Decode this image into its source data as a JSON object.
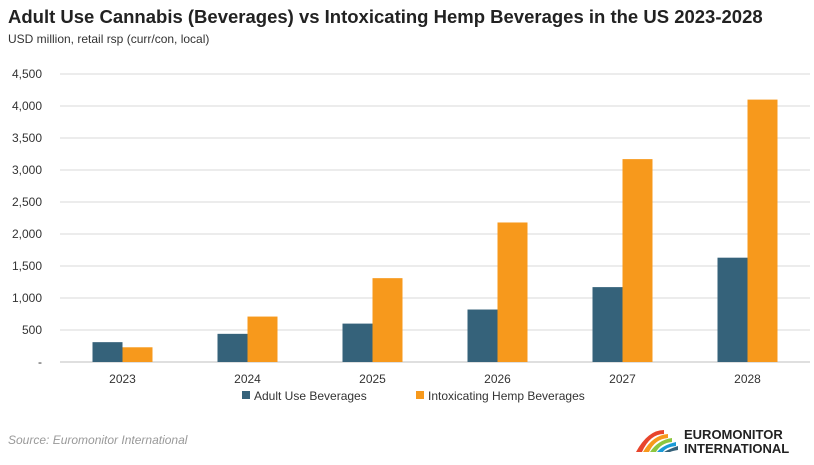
{
  "chart_data": {
    "type": "bar",
    "title": "Adult Use Cannabis (Beverages) vs Intoxicating Hemp Beverages in the US 2023-2028",
    "subtitle": "USD million, retail rsp (curr/con, local)",
    "xlabel": "",
    "ylabel": "",
    "categories": [
      "2023",
      "2024",
      "2025",
      "2026",
      "2027",
      "2028"
    ],
    "series": [
      {
        "name": "Adult Use Beverages",
        "color": "#35627a",
        "values": [
          310,
          440,
          600,
          820,
          1170,
          1630
        ]
      },
      {
        "name": "Intoxicating Hemp Beverages",
        "color": "#f7991c",
        "values": [
          230,
          710,
          1310,
          2180,
          3170,
          4100
        ]
      }
    ],
    "ylim": [
      0,
      4500
    ],
    "yticks": [
      0,
      500,
      1000,
      1500,
      2000,
      2500,
      3000,
      3500,
      4000,
      4500
    ],
    "ytick_labels": [
      "-",
      "500",
      "1,000",
      "1,500",
      "2,000",
      "2,500",
      "3,000",
      "3,500",
      "4,000",
      "4,500"
    ],
    "grid": true,
    "legend_position": "bottom-center"
  },
  "footer": {
    "source": "Source: Euromonitor International",
    "brand_line1": "EUROMONITOR",
    "brand_line2": "INTERNATIONAL"
  }
}
